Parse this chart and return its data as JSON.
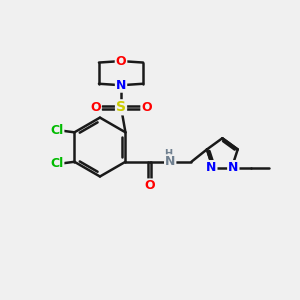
{
  "background_color": "#f0f0f0",
  "bond_color": "#1a1a1a",
  "cl_color": "#00bb00",
  "o_color": "#ff0000",
  "n_color": "#0000ff",
  "s_color": "#cccc00",
  "nh_color": "#708090",
  "figsize": [
    3.0,
    3.0
  ],
  "dpi": 100,
  "xlim": [
    0,
    10
  ],
  "ylim": [
    0,
    10
  ]
}
